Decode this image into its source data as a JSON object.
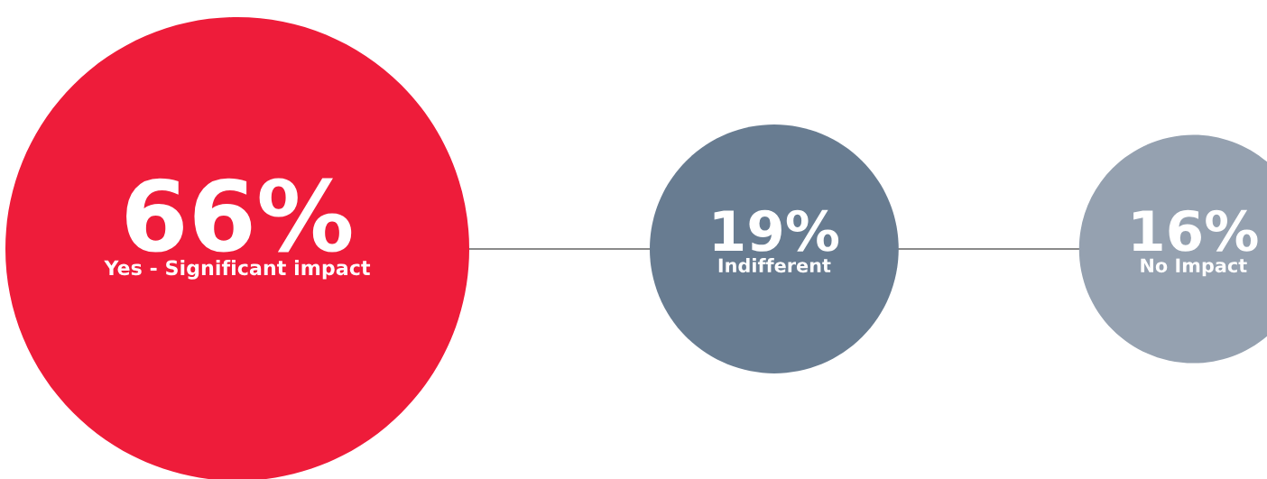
{
  "chart_data": {
    "type": "other",
    "categories": [
      "Yes - Significant impact",
      "Indifferent",
      "No Impact"
    ],
    "values": [
      66,
      19,
      16
    ],
    "value_labels": [
      "66%",
      "19%",
      "16%"
    ],
    "colors": [
      "#ee1c3a",
      "#687c91",
      "#95a1b0"
    ]
  }
}
